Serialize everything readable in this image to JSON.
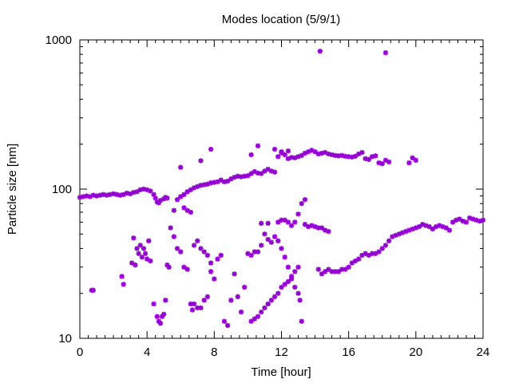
{
  "chart_data": {
    "type": "scatter",
    "title": "Modes location (5/9/1)",
    "xlabel": "Time [hour]",
    "ylabel": "Particle size [nm]",
    "xlim": [
      0,
      24
    ],
    "ylim": [
      10,
      1000
    ],
    "yscale": "log",
    "grid": false,
    "legend": "none",
    "marker_color": "#9400d3",
    "marker": "asterisk",
    "x_ticks": [
      {
        "value": 0,
        "label": "0"
      },
      {
        "value": 4,
        "label": "4"
      },
      {
        "value": 8,
        "label": "8"
      },
      {
        "value": 12,
        "label": "12"
      },
      {
        "value": 16,
        "label": "16"
      },
      {
        "value": 20,
        "label": "20"
      },
      {
        "value": 24,
        "label": "24"
      }
    ],
    "y_ticks": [
      {
        "value": 10,
        "label": "10"
      },
      {
        "value": 100,
        "label": "100"
      },
      {
        "value": 1000,
        "label": "1000"
      }
    ],
    "points": [
      [
        0.0,
        88
      ],
      [
        0.2,
        89
      ],
      [
        0.4,
        90
      ],
      [
        0.6,
        89
      ],
      [
        0.8,
        91
      ],
      [
        1.0,
        90
      ],
      [
        1.2,
        91
      ],
      [
        1.4,
        92
      ],
      [
        1.6,
        91
      ],
      [
        1.8,
        92
      ],
      [
        2.0,
        93
      ],
      [
        2.2,
        92
      ],
      [
        2.4,
        91
      ],
      [
        2.6,
        92
      ],
      [
        2.8,
        94
      ],
      [
        3.0,
        93
      ],
      [
        3.2,
        95
      ],
      [
        3.4,
        96
      ],
      [
        3.6,
        99
      ],
      [
        3.8,
        100
      ],
      [
        4.0,
        99
      ],
      [
        4.2,
        97
      ],
      [
        4.4,
        92
      ],
      [
        4.5,
        87
      ],
      [
        4.6,
        82
      ],
      [
        4.7,
        81
      ],
      [
        4.8,
        84
      ],
      [
        5.0,
        86
      ],
      [
        5.1,
        88
      ],
      [
        5.2,
        87
      ],
      [
        5.6,
        72
      ],
      [
        5.8,
        85
      ],
      [
        6.0,
        89
      ],
      [
        6.2,
        92
      ],
      [
        6.4,
        96
      ],
      [
        6.6,
        99
      ],
      [
        6.8,
        102
      ],
      [
        7.0,
        104
      ],
      [
        7.2,
        106
      ],
      [
        7.4,
        107
      ],
      [
        7.6,
        108
      ],
      [
        7.8,
        110
      ],
      [
        8.0,
        111
      ],
      [
        8.2,
        112
      ],
      [
        8.4,
        115
      ],
      [
        8.6,
        112
      ],
      [
        8.8,
        113
      ],
      [
        9.0,
        117
      ],
      [
        9.2,
        120
      ],
      [
        9.4,
        122
      ],
      [
        9.6,
        121
      ],
      [
        9.8,
        122
      ],
      [
        10.0,
        123
      ],
      [
        10.2,
        127
      ],
      [
        10.4,
        131
      ],
      [
        10.6,
        128
      ],
      [
        10.8,
        127
      ],
      [
        11.0,
        132
      ],
      [
        11.2,
        136
      ],
      [
        11.4,
        132
      ],
      [
        11.6,
        130
      ],
      [
        11.8,
        165
      ],
      [
        12.0,
        175
      ],
      [
        12.2,
        170
      ],
      [
        12.4,
        160
      ],
      [
        12.6,
        163
      ],
      [
        12.8,
        162
      ],
      [
        13.0,
        165
      ],
      [
        13.2,
        168
      ],
      [
        13.4,
        174
      ],
      [
        13.6,
        178
      ],
      [
        13.8,
        182
      ],
      [
        14.0,
        178
      ],
      [
        14.2,
        172
      ],
      [
        14.4,
        174
      ],
      [
        14.6,
        176
      ],
      [
        14.8,
        172
      ],
      [
        15.0,
        170
      ],
      [
        15.2,
        168
      ],
      [
        15.4,
        167
      ],
      [
        15.6,
        168
      ],
      [
        15.8,
        166
      ],
      [
        16.0,
        165
      ],
      [
        16.2,
        164
      ],
      [
        16.4,
        166
      ],
      [
        16.6,
        172
      ],
      [
        16.8,
        176
      ],
      [
        17.0,
        160
      ],
      [
        17.2,
        158
      ],
      [
        17.4,
        165
      ],
      [
        17.6,
        167
      ],
      [
        17.8,
        150
      ],
      [
        18.0,
        148
      ],
      [
        18.2,
        156
      ],
      [
        18.4,
        152
      ],
      [
        19.6,
        150
      ],
      [
        19.8,
        162
      ],
      [
        20.0,
        156
      ],
      [
        13.4,
        85
      ],
      [
        13.2,
        80
      ],
      [
        13.0,
        68
      ],
      [
        12.8,
        60
      ],
      [
        12.6,
        57
      ],
      [
        12.4,
        60
      ],
      [
        12.2,
        62
      ],
      [
        12.0,
        62
      ],
      [
        11.8,
        60
      ],
      [
        11.2,
        59
      ],
      [
        10.8,
        59
      ],
      [
        13.4,
        58
      ],
      [
        13.6,
        56
      ],
      [
        13.8,
        57
      ],
      [
        14.0,
        56
      ],
      [
        14.2,
        55
      ],
      [
        14.4,
        55
      ],
      [
        14.6,
        53
      ],
      [
        14.8,
        52
      ],
      [
        14.2,
        29
      ],
      [
        14.4,
        27
      ],
      [
        14.6,
        28
      ],
      [
        14.8,
        29
      ],
      [
        15.0,
        28
      ],
      [
        15.2,
        28
      ],
      [
        15.4,
        28
      ],
      [
        15.6,
        29
      ],
      [
        15.8,
        29
      ],
      [
        16.0,
        30
      ],
      [
        16.2,
        32
      ],
      [
        16.4,
        33
      ],
      [
        16.6,
        34
      ],
      [
        16.8,
        36
      ],
      [
        17.0,
        37
      ],
      [
        17.2,
        36
      ],
      [
        17.4,
        37
      ],
      [
        17.6,
        37
      ],
      [
        17.8,
        38
      ],
      [
        18.0,
        40
      ],
      [
        18.2,
        42
      ],
      [
        18.4,
        45
      ],
      [
        18.6,
        48
      ],
      [
        18.8,
        49
      ],
      [
        19.0,
        50
      ],
      [
        19.2,
        51
      ],
      [
        19.4,
        52
      ],
      [
        19.6,
        53
      ],
      [
        19.8,
        54
      ],
      [
        20.0,
        55
      ],
      [
        20.2,
        56
      ],
      [
        20.4,
        58
      ],
      [
        20.6,
        57
      ],
      [
        20.8,
        56
      ],
      [
        21.0,
        54
      ],
      [
        21.2,
        56
      ],
      [
        21.4,
        57
      ],
      [
        21.6,
        56
      ],
      [
        21.8,
        55
      ],
      [
        22.0,
        53
      ],
      [
        22.2,
        60
      ],
      [
        22.4,
        62
      ],
      [
        22.6,
        63
      ],
      [
        22.8,
        61
      ],
      [
        23.0,
        60
      ],
      [
        23.2,
        64
      ],
      [
        23.4,
        63
      ],
      [
        23.6,
        62
      ],
      [
        23.8,
        61
      ],
      [
        24.0,
        62
      ],
      [
        10.2,
        13
      ],
      [
        10.4,
        13.5
      ],
      [
        10.6,
        14
      ],
      [
        10.8,
        15
      ],
      [
        11.0,
        16
      ],
      [
        11.2,
        17
      ],
      [
        11.4,
        18
      ],
      [
        11.6,
        19
      ],
      [
        11.8,
        20
      ],
      [
        12.0,
        22
      ],
      [
        12.2,
        23
      ],
      [
        12.4,
        24
      ],
      [
        12.6,
        26
      ],
      [
        12.8,
        28
      ],
      [
        13.0,
        30
      ],
      [
        13.2,
        13
      ],
      [
        0.7,
        21
      ],
      [
        0.8,
        21
      ],
      [
        2.5,
        26
      ],
      [
        2.6,
        23
      ],
      [
        3.1,
        32
      ],
      [
        3.2,
        47
      ],
      [
        3.3,
        31
      ],
      [
        3.4,
        40
      ],
      [
        3.5,
        37
      ],
      [
        3.6,
        42
      ],
      [
        3.7,
        35
      ],
      [
        3.8,
        40
      ],
      [
        3.9,
        37
      ],
      [
        4.0,
        34
      ],
      [
        4.1,
        45
      ],
      [
        4.2,
        33
      ],
      [
        4.4,
        17
      ],
      [
        4.6,
        14
      ],
      [
        4.7,
        13
      ],
      [
        4.8,
        12.6
      ],
      [
        4.9,
        14
      ],
      [
        5.0,
        14.5
      ],
      [
        5.1,
        18
      ],
      [
        5.2,
        31
      ],
      [
        5.3,
        30
      ],
      [
        5.4,
        55
      ],
      [
        5.6,
        48
      ],
      [
        5.8,
        40
      ],
      [
        6.0,
        38
      ],
      [
        6.2,
        30
      ],
      [
        6.4,
        29
      ],
      [
        6.6,
        17
      ],
      [
        6.7,
        15.5
      ],
      [
        6.8,
        17
      ],
      [
        7.0,
        16
      ],
      [
        7.2,
        16
      ],
      [
        7.4,
        18
      ],
      [
        7.6,
        19
      ],
      [
        7.8,
        28
      ],
      [
        8.0,
        25
      ],
      [
        8.2,
        34
      ],
      [
        8.4,
        36
      ],
      [
        8.6,
        13
      ],
      [
        8.8,
        12.2
      ],
      [
        9.0,
        18
      ],
      [
        9.2,
        27
      ],
      [
        9.4,
        19
      ],
      [
        9.6,
        15
      ],
      [
        9.8,
        22
      ],
      [
        10.0,
        37
      ],
      [
        10.2,
        36
      ],
      [
        10.4,
        38
      ],
      [
        10.6,
        38
      ],
      [
        10.8,
        42
      ],
      [
        11.0,
        50
      ],
      [
        11.2,
        46
      ],
      [
        11.4,
        44
      ],
      [
        11.6,
        48
      ],
      [
        11.8,
        45
      ],
      [
        12.0,
        40
      ],
      [
        12.2,
        35
      ],
      [
        12.4,
        30
      ],
      [
        12.6,
        25
      ],
      [
        12.8,
        22
      ],
      [
        13.0,
        20
      ],
      [
        13.1,
        18
      ],
      [
        6.0,
        140
      ],
      [
        7.2,
        155
      ],
      [
        7.8,
        185
      ],
      [
        10.2,
        170
      ],
      [
        10.6,
        195
      ],
      [
        11.6,
        185
      ],
      [
        12.0,
        178
      ],
      [
        12.4,
        180
      ],
      [
        6.2,
        75
      ],
      [
        6.4,
        72
      ],
      [
        6.6,
        70
      ],
      [
        6.8,
        42
      ],
      [
        7.0,
        45
      ],
      [
        7.2,
        40
      ],
      [
        7.4,
        38
      ],
      [
        7.6,
        36
      ],
      [
        7.8,
        32
      ],
      [
        14.3,
        840
      ],
      [
        18.2,
        820
      ]
    ]
  }
}
